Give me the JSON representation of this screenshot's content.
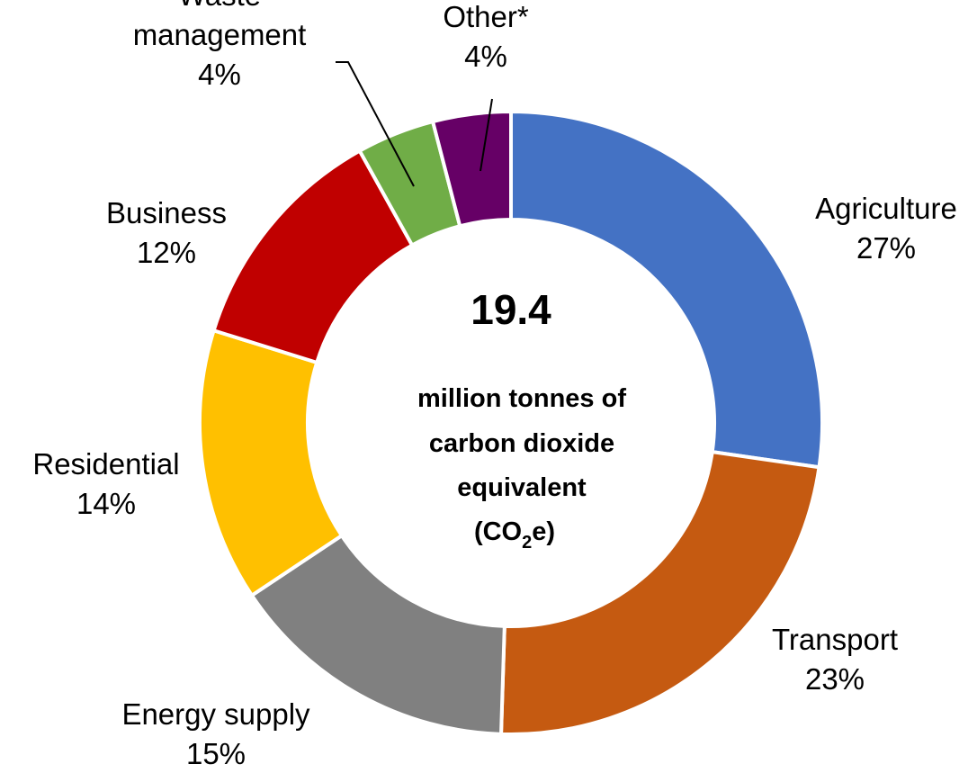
{
  "chart_data": {
    "type": "pie",
    "variant": "donut",
    "center": {
      "value": "19.4",
      "lines": [
        "million tonnes of",
        "carbon dioxide",
        "equivalent"
      ],
      "unit_prefix": "(CO",
      "unit_sub": "2",
      "unit_suffix": "e)"
    },
    "slices": [
      {
        "name": "Agriculture",
        "percent_label": "27%",
        "value": 27,
        "color": "#4472C4"
      },
      {
        "name": "Transport",
        "percent_label": "23%",
        "value": 23,
        "color": "#C55A11"
      },
      {
        "name": "Energy supply",
        "percent_label": "15%",
        "value": 15,
        "color": "#808080"
      },
      {
        "name": "Residential",
        "percent_label": "14%",
        "value": 14,
        "color": "#FFC000"
      },
      {
        "name": "Business",
        "percent_label": "12%",
        "value": 12,
        "color": "#C00000"
      },
      {
        "name": "Waste management",
        "label_lines": [
          "Waste",
          "management"
        ],
        "percent_label": "4%",
        "value": 4,
        "color": "#70AD47"
      },
      {
        "name": "Other*",
        "percent_label": "4%",
        "value": 4,
        "color": "#660066"
      }
    ]
  }
}
